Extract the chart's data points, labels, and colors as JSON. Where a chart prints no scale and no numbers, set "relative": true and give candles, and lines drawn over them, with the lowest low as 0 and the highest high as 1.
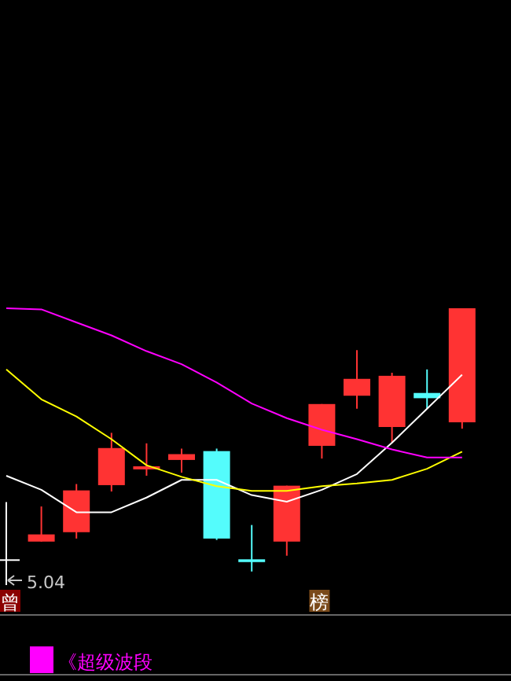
{
  "chart_data": {
    "type": "candlestick",
    "relative": true,
    "categories": [
      null,
      null,
      null,
      null,
      null,
      null,
      null,
      null,
      null,
      null,
      null,
      null,
      null,
      null
    ],
    "ohlc": [
      [
        0.093,
        0.3,
        0,
        0.093
      ],
      [
        0.157,
        0.284,
        0.157,
        0.183
      ],
      [
        0.191,
        0.365,
        0.168,
        0.342
      ],
      [
        0.361,
        0.55,
        0.338,
        0.495
      ],
      [
        0.418,
        0.512,
        0.395,
        0.429
      ],
      [
        0.452,
        0.493,
        0.406,
        0.473
      ],
      [
        0.484,
        0.493,
        0.163,
        0.168
      ],
      [
        0.093,
        0.217,
        0.049,
        0.083
      ],
      [
        0.157,
        0.359,
        0.106,
        0.359
      ],
      [
        0.503,
        0.654,
        0.457,
        0.654
      ],
      [
        0.684,
        0.849,
        0.637,
        0.745
      ],
      [
        0.571,
        0.767,
        0.514,
        0.756
      ],
      [
        0.694,
        0.779,
        0.637,
        0.675
      ],
      [
        0.588,
        1,
        0.565,
        1
      ]
    ],
    "colors": [
      "#ffffff",
      "#ff3333",
      "#ff3333",
      "#ff3333",
      "#ff3333",
      "#ff3333",
      "#54fcfc",
      "#54fcfc",
      "#ff3333",
      "#ff3333",
      "#ff3333",
      "#ff3333",
      "#54fcfc",
      "#ff3333"
    ],
    "series": [
      {
        "type": "line",
        "color": "#ffffff",
        "values": [
          0.395,
          0.344,
          0.263,
          0.263,
          0.316,
          0.38,
          0.38,
          0.325,
          0.301,
          0.344,
          0.401,
          0.514,
          0.637,
          0.76
        ]
      },
      {
        "type": "line",
        "color": "#ffff00",
        "values": [
          0.779,
          0.671,
          0.609,
          0.527,
          0.433,
          0.391,
          0.357,
          0.34,
          0.34,
          0.357,
          0.367,
          0.38,
          0.42,
          0.482
        ]
      },
      {
        "type": "line",
        "color": "#ff00ff",
        "values": [
          1.0,
          0.996,
          0.949,
          0.902,
          0.845,
          0.798,
          0.732,
          0.656,
          0.603,
          0.561,
          0.527,
          0.49,
          0.461,
          0.461
        ]
      }
    ],
    "annotations": [
      "5.04",
      "曾",
      "榜",
      "《超级波段"
    ]
  }
}
